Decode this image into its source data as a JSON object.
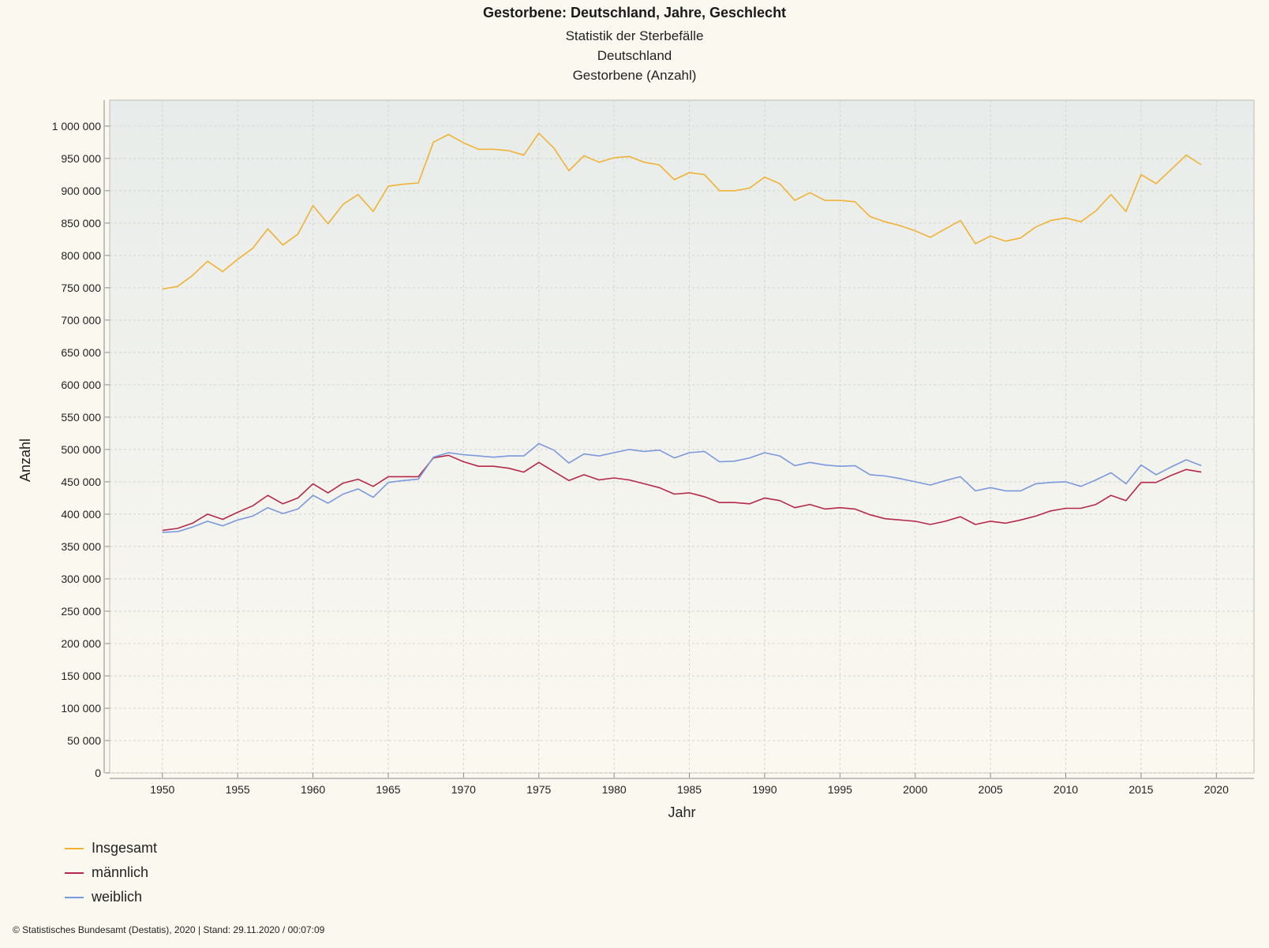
{
  "title": "Gestorbene: Deutschland, Jahre, Geschlecht",
  "subtitles": [
    "Statistik der Sterbefälle",
    "Deutschland",
    "Gestorbene (Anzahl)"
  ],
  "footer": "© Statistisches Bundesamt (Destatis), 2020 | Stand: 29.11.2020 / 00:07:09",
  "chart_data": {
    "type": "line",
    "title": "Gestorbene: Deutschland, Jahre, Geschlecht",
    "subtitle": "Statistik der Sterbefälle / Deutschland / Gestorbene (Anzahl)",
    "xlabel": "Jahr",
    "ylabel": "Anzahl",
    "xlim": [
      1946.5,
      2022.5
    ],
    "ylim": [
      0,
      1040000
    ],
    "x_ticks": [
      1950,
      1955,
      1960,
      1965,
      1970,
      1975,
      1980,
      1985,
      1990,
      1995,
      2000,
      2005,
      2010,
      2015,
      2020
    ],
    "y_ticks": [
      0,
      50000,
      100000,
      150000,
      200000,
      250000,
      300000,
      350000,
      400000,
      450000,
      500000,
      550000,
      600000,
      650000,
      700000,
      750000,
      800000,
      850000,
      900000,
      950000,
      1000000
    ],
    "y_tick_labels": [
      "0",
      "50 000",
      "100 000",
      "150 000",
      "200 000",
      "250 000",
      "300 000",
      "350 000",
      "400 000",
      "450 000",
      "500 000",
      "550 000",
      "600 000",
      "650 000",
      "700 000",
      "750 000",
      "800 000",
      "850 000",
      "900 000",
      "950 000",
      "1 000 000"
    ],
    "grid": true,
    "legend_position": "bottom-left",
    "x": [
      1950,
      1951,
      1952,
      1953,
      1954,
      1955,
      1956,
      1957,
      1958,
      1959,
      1960,
      1961,
      1962,
      1963,
      1964,
      1965,
      1966,
      1967,
      1968,
      1969,
      1970,
      1971,
      1972,
      1973,
      1974,
      1975,
      1976,
      1977,
      1978,
      1979,
      1980,
      1981,
      1982,
      1983,
      1984,
      1985,
      1986,
      1987,
      1988,
      1989,
      1990,
      1991,
      1992,
      1993,
      1994,
      1995,
      1996,
      1997,
      1998,
      1999,
      2000,
      2001,
      2002,
      2003,
      2004,
      2005,
      2006,
      2007,
      2008,
      2009,
      2010,
      2011,
      2012,
      2013,
      2014,
      2015,
      2016,
      2017,
      2018,
      2019
    ],
    "series": [
      {
        "name": "Insgesamt",
        "color": "#f2b134",
        "values": [
          748000,
          752000,
          769000,
          791000,
          775000,
          794000,
          811000,
          841000,
          816000,
          833000,
          877000,
          849000,
          879000,
          894000,
          868000,
          907000,
          910000,
          912000,
          975000,
          987000,
          974000,
          964000,
          964000,
          962000,
          955000,
          989000,
          966000,
          931000,
          954000,
          944000,
          951000,
          953000,
          944000,
          940000,
          917000,
          928000,
          925000,
          900000,
          900000,
          904000,
          921000,
          911000,
          885000,
          897000,
          885000,
          885000,
          883000,
          860000,
          852000,
          846000,
          838000,
          828000,
          841000,
          854000,
          818000,
          830000,
          822000,
          827000,
          844000,
          854000,
          858000,
          852000,
          869000,
          894000,
          868000,
          925000,
          911000,
          933000,
          955000,
          940000
        ]
      },
      {
        "name": "männlich",
        "color": "#b5284a",
        "values": [
          375000,
          378000,
          386000,
          400000,
          392000,
          403000,
          413000,
          429000,
          416000,
          425000,
          447000,
          433000,
          448000,
          454000,
          443000,
          458000,
          458000,
          458000,
          487000,
          491000,
          481000,
          474000,
          474000,
          471000,
          465000,
          480000,
          466000,
          452000,
          461000,
          453000,
          456000,
          453000,
          447000,
          441000,
          431000,
          433000,
          427000,
          418000,
          418000,
          416000,
          425000,
          421000,
          410000,
          415000,
          408000,
          410000,
          408000,
          399000,
          393000,
          391000,
          389000,
          384000,
          389000,
          396000,
          384000,
          389000,
          386000,
          391000,
          397000,
          405000,
          409000,
          409000,
          415000,
          429000,
          421000,
          449000,
          449000,
          460000,
          469000,
          465000
        ]
      },
      {
        "name": "weiblich",
        "color": "#7a98dc",
        "values": [
          372000,
          373000,
          380000,
          389000,
          382000,
          391000,
          397000,
          410000,
          401000,
          408000,
          429000,
          417000,
          431000,
          439000,
          426000,
          449000,
          452000,
          454000,
          488000,
          495000,
          492000,
          490000,
          488000,
          490000,
          490000,
          509000,
          499000,
          479000,
          493000,
          490000,
          495000,
          500000,
          497000,
          499000,
          487000,
          495000,
          497000,
          481000,
          482000,
          487000,
          495000,
          490000,
          475000,
          480000,
          476000,
          474000,
          475000,
          461000,
          459000,
          455000,
          450000,
          445000,
          452000,
          458000,
          436000,
          441000,
          436000,
          436000,
          447000,
          449000,
          450000,
          443000,
          453000,
          464000,
          447000,
          476000,
          461000,
          473000,
          484000,
          475000
        ]
      }
    ]
  }
}
